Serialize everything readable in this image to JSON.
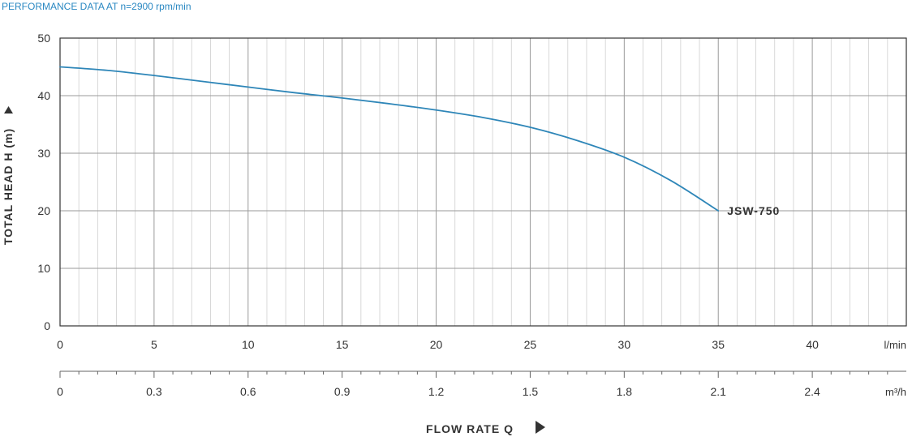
{
  "header": {
    "text": "PERFORMANCE DATA AT n=2900 rpm/min"
  },
  "chart_data": {
    "type": "line",
    "ylabel": "TOTAL HEAD H (m)",
    "xlabel": "FLOW RATE Q",
    "ylim": [
      0,
      50
    ],
    "y_ticks": [
      "0",
      "10",
      "20",
      "30",
      "40",
      "50"
    ],
    "xlim": [
      0,
      45
    ],
    "x_ticks_lmin": [
      "0",
      "5",
      "10",
      "15",
      "20",
      "25",
      "30",
      "35",
      "40"
    ],
    "x_unit_lmin": "l/min",
    "x_ticks_m3h": [
      "0",
      "0.3",
      "0.6",
      "0.9",
      "1.2",
      "1.5",
      "1.8",
      "2.1",
      "2.4"
    ],
    "x_unit_m3h": "m³/h",
    "grid": true,
    "series": [
      {
        "name": "JSW-750",
        "color": "#2e86b8",
        "x": [
          0,
          2.5,
          5,
          7.5,
          10,
          12.5,
          15,
          17.5,
          20,
          22.5,
          25,
          27.5,
          30,
          32.5,
          35
        ],
        "y": [
          45,
          44.4,
          43.5,
          42.5,
          41.5,
          40.5,
          39.6,
          38.6,
          37.5,
          36.2,
          34.5,
          32.2,
          29.3,
          25.2,
          20
        ]
      }
    ]
  }
}
